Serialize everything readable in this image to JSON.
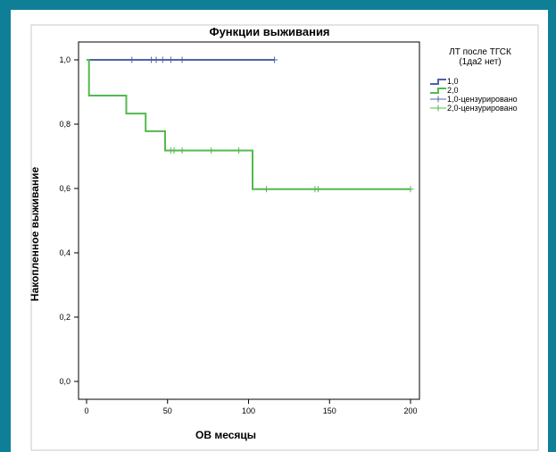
{
  "chart_data": {
    "type": "line",
    "title": "Функции выживания",
    "xlabel": "ОВ месяцы",
    "ylabel": "Накопленное выживание",
    "xlim": [
      0,
      200
    ],
    "ylim": [
      0,
      1
    ],
    "x_ticks": [
      "0",
      "50",
      "100",
      "150",
      "200"
    ],
    "y_ticks": [
      "0,0",
      "0,2",
      "0,4",
      "0,6",
      "0,8",
      "1,0"
    ],
    "grid": false,
    "legend_position": "right",
    "legend_title": [
      "ЛТ после ТГСК",
      "(1да2 нет)"
    ],
    "legend_entries": [
      "1,0",
      "2,0",
      "1,0-цензурировано",
      "2,0-цензурировано"
    ],
    "series": [
      {
        "name": "1,0",
        "color": "#4e64a8",
        "steps": [
          [
            0,
            1.0
          ],
          [
            116,
            1.0
          ]
        ],
        "censored": [
          [
            28,
            1.0
          ],
          [
            40,
            1.0
          ],
          [
            43,
            1.0
          ],
          [
            47,
            1.0
          ],
          [
            52,
            1.0
          ],
          [
            59,
            1.0
          ],
          [
            116,
            1.0
          ]
        ]
      },
      {
        "name": "2,0",
        "color": "#53b94e",
        "steps": [
          [
            0,
            1.0
          ],
          [
            1.5,
            1.0
          ],
          [
            1.5,
            0.889
          ],
          [
            24.5,
            0.889
          ],
          [
            24.5,
            0.833
          ],
          [
            36.5,
            0.833
          ],
          [
            36.5,
            0.778
          ],
          [
            48.5,
            0.778
          ],
          [
            48.5,
            0.718
          ],
          [
            102.5,
            0.718
          ],
          [
            102.5,
            0.598
          ],
          [
            200,
            0.598
          ]
        ],
        "censored": [
          [
            52,
            0.718
          ],
          [
            54,
            0.718
          ],
          [
            59,
            0.718
          ],
          [
            77,
            0.718
          ],
          [
            94,
            0.718
          ],
          [
            111,
            0.598
          ],
          [
            141,
            0.598
          ],
          [
            143,
            0.598
          ],
          [
            200,
            0.598
          ]
        ]
      }
    ]
  }
}
